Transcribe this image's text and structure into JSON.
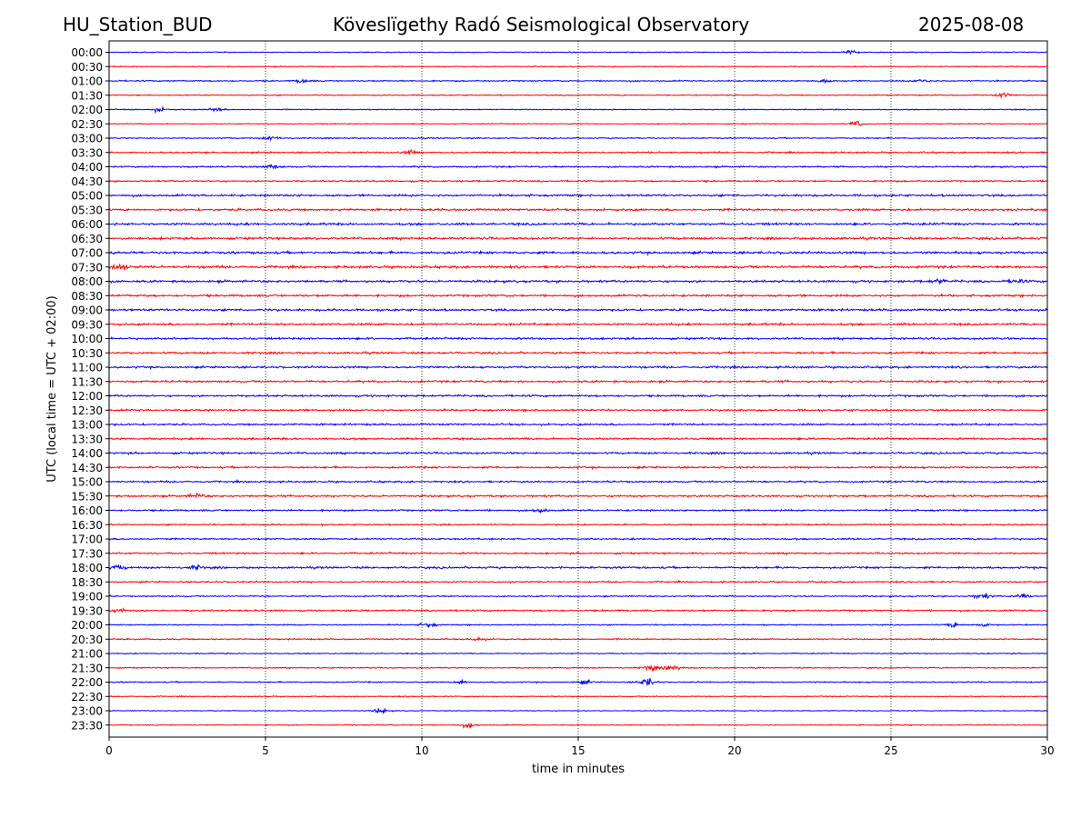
{
  "header": {
    "station": "HU_Station_BUD",
    "observatory": "Köveslïgethy Radó Seismological Observatory",
    "date": "2025-08-08"
  },
  "chart_data": {
    "type": "line",
    "title": "Köveslïgethy Radó Seismological Observatory",
    "xlabel": "time in minutes",
    "ylabel": "UTC (local time = UTC + 02:00)",
    "xlim": [
      0,
      30
    ],
    "xticks": [
      0,
      5,
      10,
      15,
      20,
      25,
      30
    ],
    "grid": "vertical dotted at x ticks",
    "colors": [
      "#0000ff",
      "#ff0000"
    ],
    "rows": [
      "00:00",
      "00:30",
      "01:00",
      "01:30",
      "02:00",
      "02:30",
      "03:00",
      "03:30",
      "04:00",
      "04:30",
      "05:00",
      "05:30",
      "06:00",
      "06:30",
      "07:00",
      "07:30",
      "08:00",
      "08:30",
      "09:00",
      "09:30",
      "10:00",
      "10:30",
      "11:00",
      "11:30",
      "12:00",
      "12:30",
      "13:00",
      "13:30",
      "14:00",
      "14:30",
      "15:00",
      "15:30",
      "16:00",
      "16:30",
      "17:00",
      "17:30",
      "18:00",
      "18:30",
      "19:00",
      "19:30",
      "20:00",
      "20:30",
      "21:00",
      "21:30",
      "22:00",
      "22:30",
      "23:00",
      "23:30"
    ],
    "noise_level": [
      0.35,
      0.35,
      0.5,
      0.4,
      0.4,
      0.35,
      0.45,
      0.55,
      0.6,
      0.6,
      0.8,
      0.8,
      0.85,
      0.85,
      0.9,
      0.9,
      0.85,
      0.8,
      0.8,
      0.8,
      0.75,
      0.75,
      0.75,
      0.75,
      0.75,
      0.7,
      0.7,
      0.7,
      0.75,
      0.7,
      0.65,
      0.7,
      0.65,
      0.55,
      0.6,
      0.65,
      0.75,
      0.55,
      0.5,
      0.6,
      0.45,
      0.5,
      0.4,
      0.45,
      0.45,
      0.35,
      0.3,
      0.35
    ],
    "events": [
      {
        "row": "00:00",
        "minute": 23.7,
        "amp": 1.6
      },
      {
        "row": "01:00",
        "minute": 6.2,
        "amp": 1.5
      },
      {
        "row": "01:00",
        "minute": 22.8,
        "amp": 1.6
      },
      {
        "row": "01:00",
        "minute": 26.0,
        "amp": 1.5
      },
      {
        "row": "01:30",
        "minute": 28.6,
        "amp": 1.8
      },
      {
        "row": "02:00",
        "minute": 1.6,
        "amp": 1.8
      },
      {
        "row": "02:00",
        "minute": 3.4,
        "amp": 1.5
      },
      {
        "row": "02:30",
        "minute": 23.9,
        "amp": 2.0
      },
      {
        "row": "03:00",
        "minute": 5.2,
        "amp": 1.5
      },
      {
        "row": "03:30",
        "minute": 9.6,
        "amp": 1.4
      },
      {
        "row": "04:00",
        "minute": 5.2,
        "amp": 1.6
      },
      {
        "row": "07:30",
        "minute": 0.3,
        "amp": 2.8
      },
      {
        "row": "08:00",
        "minute": 26.5,
        "amp": 1.6
      },
      {
        "row": "08:00",
        "minute": 29.0,
        "amp": 1.5
      },
      {
        "row": "15:30",
        "minute": 2.8,
        "amp": 1.6
      },
      {
        "row": "16:00",
        "minute": 13.8,
        "amp": 1.5
      },
      {
        "row": "18:00",
        "minute": 0.3,
        "amp": 1.6
      },
      {
        "row": "18:00",
        "minute": 2.8,
        "amp": 1.5
      },
      {
        "row": "19:00",
        "minute": 27.9,
        "amp": 2.2
      },
      {
        "row": "19:00",
        "minute": 29.2,
        "amp": 2.0
      },
      {
        "row": "19:30",
        "minute": 0.4,
        "amp": 1.6
      },
      {
        "row": "20:00",
        "minute": 10.2,
        "amp": 2.0
      },
      {
        "row": "20:00",
        "minute": 27.0,
        "amp": 1.6
      },
      {
        "row": "20:00",
        "minute": 27.9,
        "amp": 1.6
      },
      {
        "row": "20:30",
        "minute": 11.8,
        "amp": 1.6
      },
      {
        "row": "21:30",
        "minute": 17.3,
        "amp": 2.4
      },
      {
        "row": "21:30",
        "minute": 18.0,
        "amp": 2.4
      },
      {
        "row": "22:00",
        "minute": 17.2,
        "amp": 3.4
      },
      {
        "row": "22:00",
        "minute": 15.2,
        "amp": 1.5
      },
      {
        "row": "22:00",
        "minute": 11.2,
        "amp": 1.6
      },
      {
        "row": "23:00",
        "minute": 8.7,
        "amp": 2.0
      },
      {
        "row": "23:30",
        "minute": 11.5,
        "amp": 1.7
      }
    ]
  }
}
